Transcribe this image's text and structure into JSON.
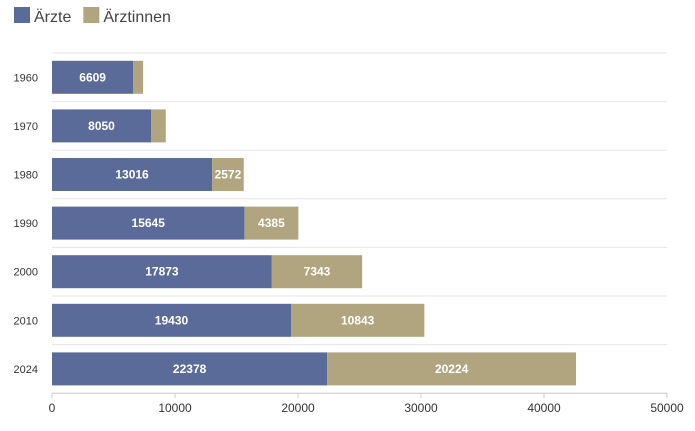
{
  "chart_data": {
    "type": "bar",
    "orientation": "horizontal",
    "stacked": true,
    "categories": [
      "1960",
      "1970",
      "1980",
      "1990",
      "2000",
      "2010",
      "2024"
    ],
    "series": [
      {
        "name": "Ärzte",
        "color": "#5a6b9a",
        "values": [
          6609,
          8050,
          13016,
          15645,
          17873,
          19430,
          22378
        ]
      },
      {
        "name": "Ärztinnen",
        "color": "#b0a57f",
        "values": [
          800,
          1200,
          2572,
          4385,
          7343,
          10843,
          20224
        ]
      }
    ],
    "data_labels": [
      [
        "6609",
        "8050",
        "13016",
        "15645",
        "17873",
        "19430",
        "22378"
      ],
      [
        "",
        "",
        "2572",
        "4385",
        "7343",
        "10843",
        "20224"
      ]
    ],
    "xlim": [
      0,
      50000
    ],
    "x_ticks": [
      "0",
      "10000",
      "20000",
      "30000",
      "40000",
      "50000"
    ],
    "legend_position": "top-left",
    "grid": true
  }
}
